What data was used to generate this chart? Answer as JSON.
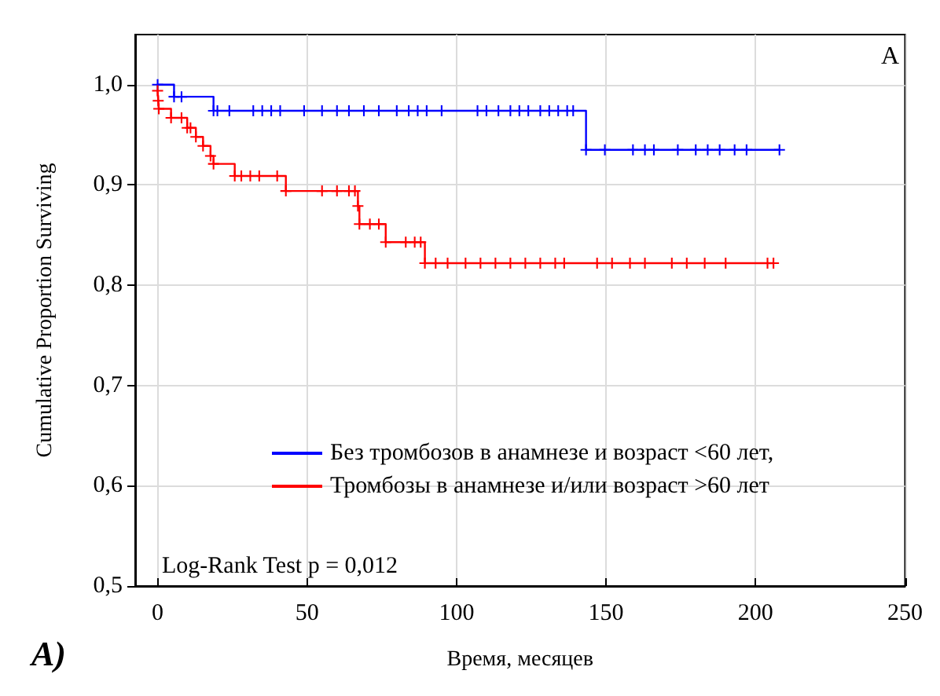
{
  "chart_data": {
    "type": "step",
    "xlabel": "Время, месяцев",
    "ylabel": "Cumulative Proportion Surviving",
    "annotations": [
      "A",
      "A)",
      "Log-Rank Test p = 0,012"
    ],
    "xlim": [
      -7.5,
      250
    ],
    "xticks": [
      0,
      50,
      100,
      150,
      200,
      250
    ],
    "ylim": [
      0.5,
      1.05
    ],
    "yticks": [
      {
        "value": 0.5,
        "label": "0,5"
      },
      {
        "value": 0.6,
        "label": "0,6"
      },
      {
        "value": 0.7,
        "label": "0,7"
      },
      {
        "value": 0.8,
        "label": "0,8"
      },
      {
        "value": 0.9,
        "label": "0,9"
      },
      {
        "value": 1.0,
        "label": "1,0"
      }
    ],
    "grid": true,
    "legend": "bottom",
    "marker": "cross",
    "line_style": "solid",
    "series": [
      {
        "name": "Без тромбозов в анамнезе и возраст <60 лет,",
        "color": "#0000ff",
        "x": [
          0,
          5.5,
          8,
          18.7,
          20,
          24,
          32,
          35,
          38,
          41,
          49,
          55,
          60,
          64,
          69,
          74,
          80,
          84,
          87,
          90,
          95,
          107,
          110,
          114,
          118,
          121,
          124,
          128,
          131,
          134,
          137,
          139,
          143.3,
          149.6,
          159,
          163,
          166,
          174,
          180,
          184,
          188,
          193,
          197,
          208
        ],
        "values": [
          1.0,
          0.988,
          0.988,
          0.974,
          0.974,
          0.974,
          0.974,
          0.974,
          0.974,
          0.974,
          0.974,
          0.974,
          0.974,
          0.974,
          0.974,
          0.974,
          0.974,
          0.974,
          0.974,
          0.974,
          0.974,
          0.974,
          0.974,
          0.974,
          0.974,
          0.974,
          0.974,
          0.974,
          0.974,
          0.974,
          0.974,
          0.974,
          0.935,
          0.935,
          0.935,
          0.935,
          0.935,
          0.935,
          0.935,
          0.935,
          0.935,
          0.935,
          0.935,
          0.935
        ]
      },
      {
        "name": "Тромбозы в анамнезе и/или возраст >60 лет",
        "color": "#ff0000",
        "x": [
          0,
          0.2,
          0.4,
          4.5,
          8,
          9.9,
          11,
          12.8,
          15.2,
          17.7,
          18.7,
          25.8,
          28,
          31,
          34,
          40,
          42.9,
          55,
          60,
          64,
          66,
          67,
          67.5,
          71,
          74,
          76.3,
          83,
          86,
          88,
          89.4,
          93,
          97,
          103,
          108,
          113,
          118,
          123,
          128,
          133,
          136,
          147,
          152,
          158,
          163,
          172,
          177,
          183,
          190,
          204,
          206
        ],
        "values": [
          0.994,
          0.984,
          0.976,
          0.967,
          0.967,
          0.957,
          0.957,
          0.948,
          0.939,
          0.929,
          0.921,
          0.909,
          0.909,
          0.909,
          0.909,
          0.909,
          0.894,
          0.894,
          0.894,
          0.894,
          0.894,
          0.879,
          0.861,
          0.861,
          0.861,
          0.843,
          0.843,
          0.843,
          0.843,
          0.822,
          0.822,
          0.822,
          0.822,
          0.822,
          0.822,
          0.822,
          0.822,
          0.822,
          0.822,
          0.822,
          0.822,
          0.822,
          0.822,
          0.822,
          0.822,
          0.822,
          0.822,
          0.822,
          0.822,
          0.822
        ]
      }
    ]
  }
}
